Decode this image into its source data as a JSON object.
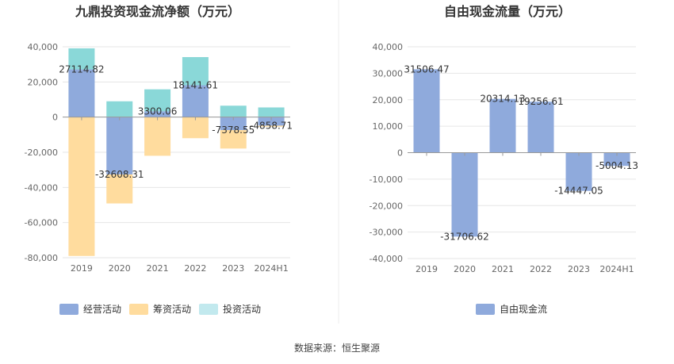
{
  "source_text": "数据来源：恒生聚源",
  "colors": {
    "operating": "#8faadc",
    "financing": "#ffdc9e",
    "investing": "#8ad8d8",
    "investing_legend": "#c2e9ee",
    "fcf": "#8faadc",
    "grid": "#e6e6e6",
    "axis": "#999999",
    "divider": "#eeeeee"
  },
  "chart_data": [
    {
      "type": "bar",
      "stacked": true,
      "title": "九鼎投资现金流净额（万元）",
      "categories": [
        "2019",
        "2020",
        "2021",
        "2022",
        "2023",
        "2024H1"
      ],
      "ylim": [
        -80000,
        40000
      ],
      "yticks": [
        40000,
        20000,
        0,
        -20000,
        -40000,
        -60000,
        -80000
      ],
      "ytick_labels": [
        "40,000",
        "20,000",
        "0",
        "-20,000",
        "-40,000",
        "-60,000",
        "-80,000"
      ],
      "grid": true,
      "legend_position": "bottom",
      "series": [
        {
          "name": "经营活动",
          "values": [
            27114.82,
            -32608.31,
            3300.06,
            18141.61,
            -7378.55,
            -4858.71
          ]
        },
        {
          "name": "筹资活动",
          "values": [
            -79000,
            -16500,
            -22000,
            -12000,
            -10500,
            -600
          ]
        },
        {
          "name": "投资活动",
          "values": [
            12000,
            9000,
            12500,
            16000,
            6500,
            5500
          ]
        }
      ],
      "data_labels": [
        "27114.82",
        "-32608.31",
        "3300.06",
        "18141.61",
        "-7378.55",
        "-4858.71"
      ]
    },
    {
      "type": "bar",
      "title": "自由现金流量（万元）",
      "categories": [
        "2019",
        "2020",
        "2021",
        "2022",
        "2023",
        "2024H1"
      ],
      "ylim": [
        -40000,
        40000
      ],
      "yticks": [
        40000,
        30000,
        20000,
        10000,
        0,
        -10000,
        -20000,
        -30000,
        -40000
      ],
      "ytick_labels": [
        "40,000",
        "30,000",
        "20,000",
        "10,000",
        "0",
        "-10,000",
        "-20,000",
        "-30,000",
        "-40,000"
      ],
      "grid": true,
      "legend_position": "bottom",
      "series": [
        {
          "name": "自由现金流",
          "values": [
            31506.47,
            -31706.62,
            20314.13,
            19256.61,
            -14447.05,
            -5004.13
          ]
        }
      ],
      "data_labels": [
        "31506.47",
        "-31706.62",
        "20314.13",
        "19256.61",
        "-14447.05",
        "-5004.13"
      ]
    }
  ]
}
